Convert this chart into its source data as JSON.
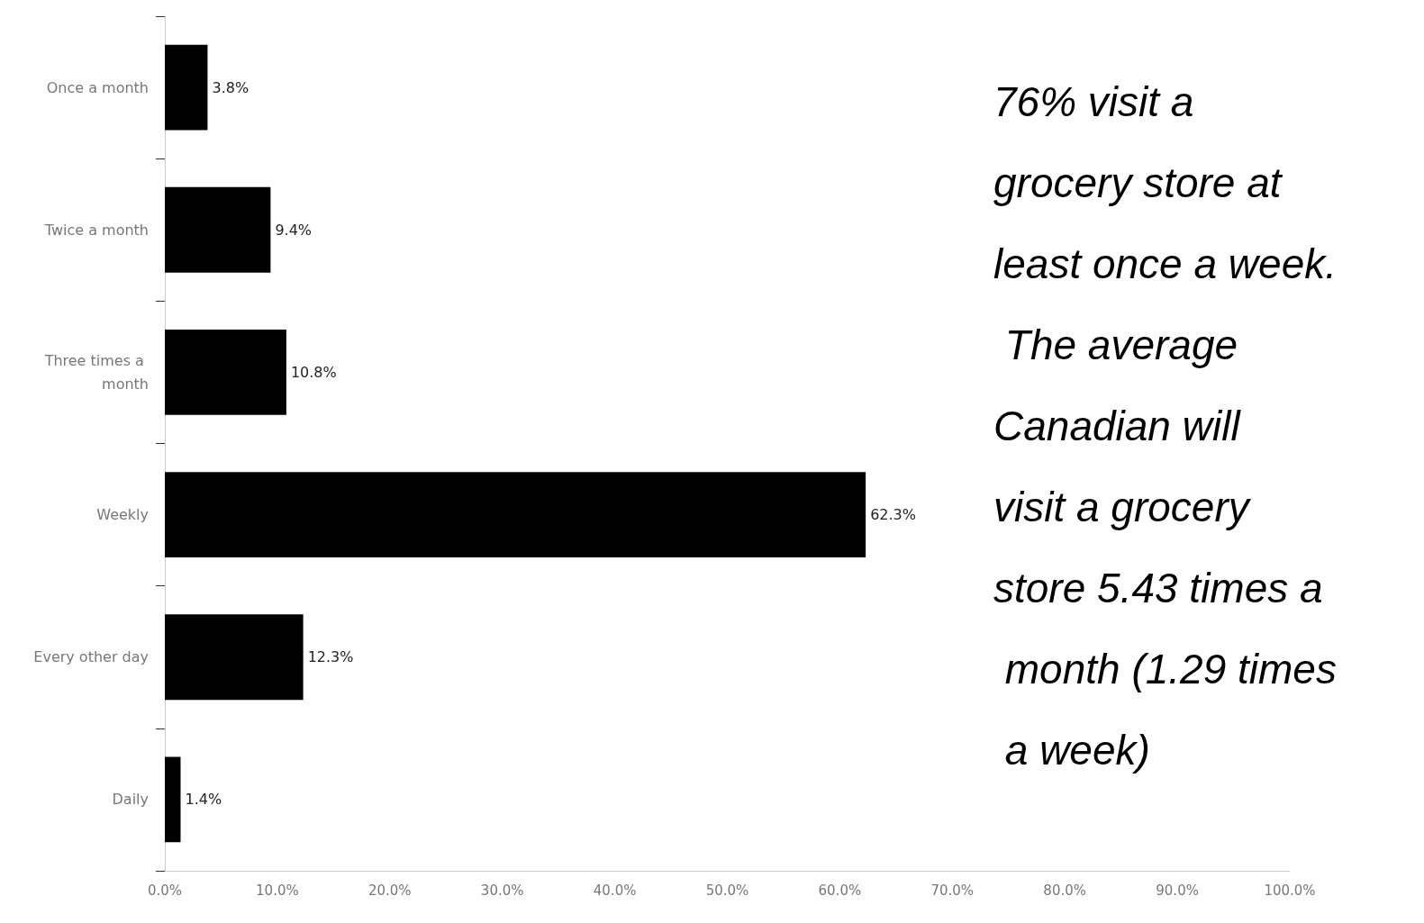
{
  "chart_data": {
    "type": "bar",
    "orientation": "horizontal",
    "categories": [
      "Once a month",
      "Twice a month",
      "Three times a month",
      "Weekly",
      "Every other day",
      "Daily"
    ],
    "values": [
      3.8,
      9.4,
      10.8,
      62.3,
      12.3,
      1.4
    ],
    "value_labels": [
      "3.8%",
      "9.4%",
      "10.8%",
      "62.3%",
      "12.3%",
      "1.4%"
    ],
    "color": "#000000",
    "xlim": [
      0,
      100
    ],
    "xticks": [
      {
        "value": 0,
        "label": "0.0%"
      },
      {
        "value": 10,
        "label": "10.0%"
      },
      {
        "value": 20,
        "label": "20.0%"
      },
      {
        "value": 30,
        "label": "30.0%"
      },
      {
        "value": 40,
        "label": "40.0%"
      },
      {
        "value": 50,
        "label": "50.0%"
      },
      {
        "value": 60,
        "label": "60.0%"
      },
      {
        "value": 70,
        "label": "70.0%"
      },
      {
        "value": 80,
        "label": "80.0%"
      },
      {
        "value": 90,
        "label": "90.0%"
      },
      {
        "value": 100,
        "label": "100.0%"
      }
    ],
    "grid": false,
    "annotations": [
      "76% visit a grocery store at least once a week. The average Canadian will visit a grocery store 5.43 times a month (1.29 times a week)"
    ]
  }
}
